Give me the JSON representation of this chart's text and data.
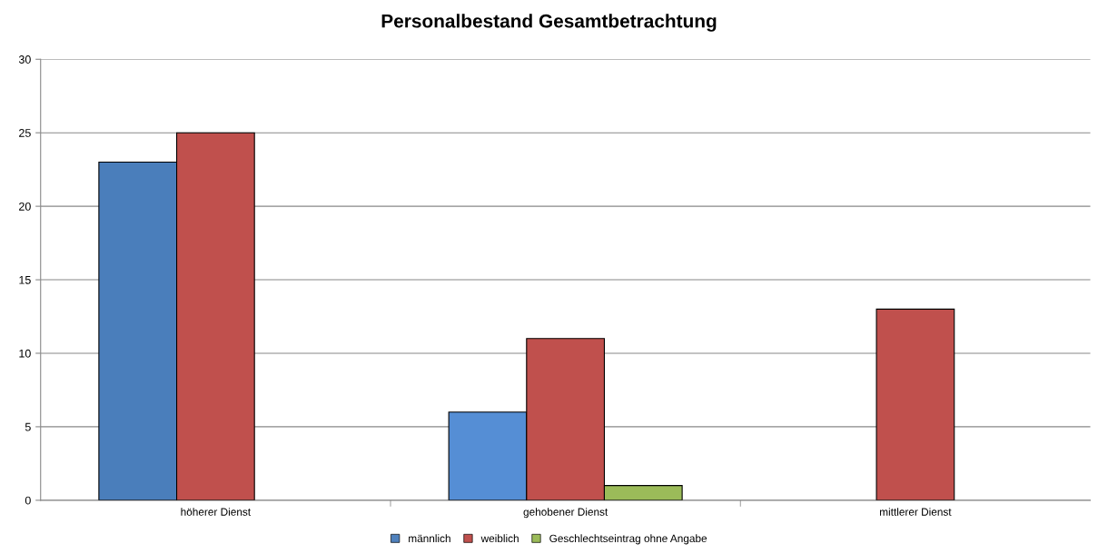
{
  "chart_data": {
    "type": "bar",
    "title": "Personalbestand Gesamtbetrachtung",
    "categories": [
      "höherer Dienst",
      "gehobener Dienst",
      "mittlerer Dienst"
    ],
    "series": [
      {
        "name": "männlich",
        "color": "#4f81bd",
        "colors": [
          "#4a7ebb",
          "#558ed5",
          "#4f81bd"
        ],
        "values": [
          23,
          6,
          null
        ]
      },
      {
        "name": "weiblich",
        "color": "#c0504d",
        "values": [
          25,
          11,
          13
        ]
      },
      {
        "name": "Geschlechtseintrag ohne Angabe",
        "color": "#9bbb59",
        "values": [
          null,
          1,
          null
        ]
      }
    ],
    "ylim": [
      0,
      30
    ],
    "yticks": [
      0,
      5,
      10,
      15,
      20,
      25,
      30
    ],
    "grid": "y",
    "legend": "bottom"
  }
}
